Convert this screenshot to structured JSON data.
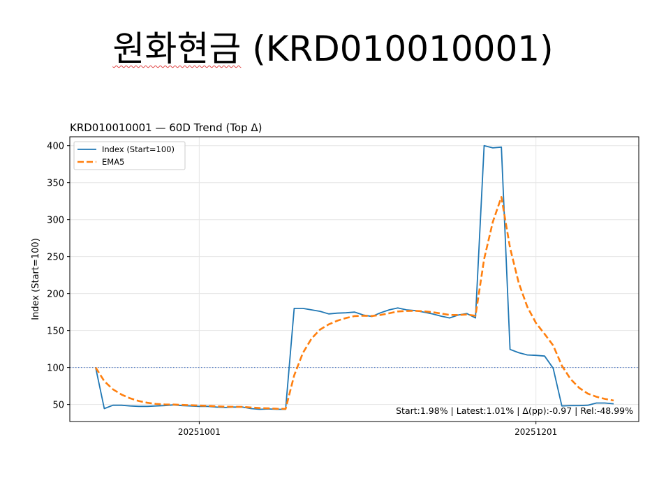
{
  "slide": {
    "title_hangul": "원화현금",
    "title_code": "(KRD010010001)"
  },
  "chart_data": {
    "type": "line",
    "title": "KRD010010001 — 60D Trend (Top Δ)",
    "xlabel": "",
    "ylabel": "Index (Start=100)",
    "ylim": [
      27,
      412
    ],
    "yticks": [
      50,
      100,
      150,
      200,
      250,
      300,
      350,
      400
    ],
    "grid": true,
    "legend_position": "top-left",
    "x_tick_labels": [
      {
        "label": "20251001",
        "index": 12
      },
      {
        "label": "20251201",
        "index": 51
      }
    ],
    "x_count": 61,
    "series": [
      {
        "name": "Index (Start=100)",
        "color": "#1f77b4",
        "style": "solid",
        "values": [
          100,
          44.5,
          49,
          49,
          48,
          47.5,
          47.5,
          48,
          48.5,
          49.5,
          48.5,
          48,
          47.5,
          47.5,
          46.5,
          46,
          46.5,
          46.5,
          44.5,
          43.5,
          44,
          43.5,
          43.5,
          180,
          180,
          178,
          176,
          172.5,
          173.5,
          174,
          175,
          171,
          169,
          174,
          178,
          180.5,
          178,
          177,
          175,
          172.5,
          169.5,
          167,
          171,
          173,
          167,
          400,
          397,
          398,
          124.5,
          120,
          117,
          116.5,
          115.5,
          99,
          48,
          48.5,
          48.5,
          49,
          52,
          52,
          51
        ]
      },
      {
        "name": "EMA5",
        "color": "#ff7f0e",
        "style": "dashed",
        "values": [
          100,
          81.5,
          70.6,
          63.4,
          58.3,
          54.7,
          52.3,
          50.8,
          50.1,
          49.9,
          49.5,
          49,
          48.5,
          48.2,
          47.6,
          47.1,
          46.9,
          46.8,
          46,
          45.2,
          44.8,
          44.3,
          44.1,
          89.4,
          119.6,
          139.1,
          151.4,
          158.4,
          163.4,
          166.9,
          169.6,
          170.1,
          169.7,
          171.1,
          173.4,
          175.8,
          176.5,
          176.7,
          176.1,
          174.9,
          173.1,
          171.1,
          171.1,
          171.7,
          170.1,
          246.8,
          296.8,
          330.6,
          261.9,
          214.6,
          182.1,
          160.2,
          145.3,
          129.9,
          102.6,
          84.6,
          72.6,
          64.7,
          60.5,
          57.6,
          55.4
        ]
      }
    ],
    "reference_line": {
      "y": 100,
      "color": "#4472c4",
      "style": "dotted"
    },
    "annotation": "Start:1.98% | Latest:1.01% | Δ(pp):-0.97 | Rel:-48.99%"
  }
}
